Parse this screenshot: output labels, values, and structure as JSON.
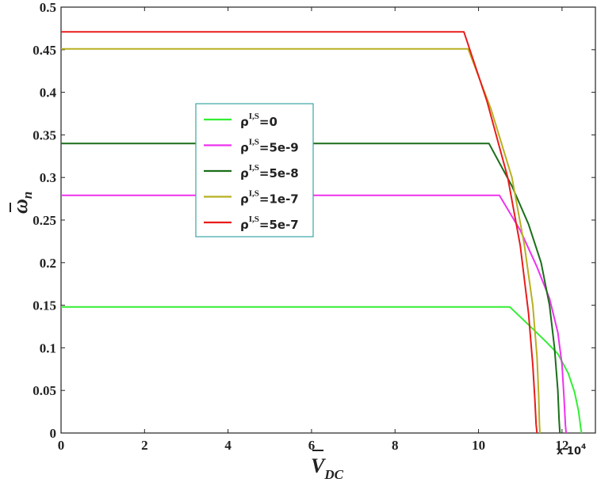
{
  "chart_data": {
    "type": "line",
    "xlabel_main": "V",
    "xlabel_sub": "DC",
    "ylabel_main": "ω",
    "ylabel_sub": "n",
    "x_multiplier": "x 10",
    "x_multiplier_exp": "4",
    "xlim": [
      0,
      12.8
    ],
    "ylim": [
      0,
      0.5
    ],
    "x_ticks": [
      0,
      2,
      4,
      6,
      8,
      10,
      12
    ],
    "x_tick_labels": [
      "0",
      "2",
      "4",
      "6",
      "8",
      "10",
      "12"
    ],
    "y_ticks": [
      0,
      0.05,
      0.1,
      0.15,
      0.2,
      0.25,
      0.3,
      0.35,
      0.4,
      0.45,
      0.5
    ],
    "y_tick_labels": [
      "0",
      "0.05",
      "0.1",
      "0.15",
      "0.2",
      "0.25",
      "0.3",
      "0.35",
      "0.4",
      "0.45",
      "0.5"
    ],
    "grid": false,
    "legend_position": "upper-left-center",
    "series": [
      {
        "name_prefix": "ρ",
        "name_sup": "I,S",
        "name_suffix": "=0",
        "color": "#33ee33",
        "x": [
          0,
          10.75,
          11.2,
          11.6,
          11.9,
          12.15,
          12.3,
          12.4,
          12.45,
          12.47
        ],
        "y": [
          0.148,
          0.148,
          0.127,
          0.108,
          0.093,
          0.07,
          0.048,
          0.025,
          0.005,
          0
        ]
      },
      {
        "name_prefix": "ρ",
        "name_sup": "I,S",
        "name_suffix": "=5e-9",
        "color": "#ee33ee",
        "x": [
          0,
          10.5,
          11.0,
          11.4,
          11.7,
          11.9,
          12.0,
          12.05,
          12.08,
          12.1
        ],
        "y": [
          0.279,
          0.279,
          0.238,
          0.195,
          0.158,
          0.118,
          0.08,
          0.04,
          0.01,
          0
        ]
      },
      {
        "name_prefix": "ρ",
        "name_sup": "I,S",
        "name_suffix": "=5e-8",
        "color": "#1a6e1a",
        "x": [
          0,
          10.25,
          10.8,
          11.2,
          11.5,
          11.7,
          11.82,
          11.9,
          11.93,
          11.95
        ],
        "y": [
          0.34,
          0.34,
          0.29,
          0.245,
          0.2,
          0.15,
          0.1,
          0.05,
          0.015,
          0
        ]
      },
      {
        "name_prefix": "ρ",
        "name_sup": "I,S",
        "name_suffix": "=1e-7",
        "color": "#b8b022",
        "x": [
          0,
          9.75,
          10.3,
          10.8,
          11.1,
          11.3,
          11.4,
          11.44,
          11.46,
          11.47
        ],
        "y": [
          0.451,
          0.451,
          0.38,
          0.3,
          0.22,
          0.15,
          0.09,
          0.045,
          0.01,
          0
        ]
      },
      {
        "name_prefix": "ρ",
        "name_sup": "I,S",
        "name_suffix": "=5e-7",
        "color": "#e81c1c",
        "x": [
          0,
          9.65,
          10.2,
          10.7,
          11.0,
          11.2,
          11.3,
          11.35,
          11.38,
          11.4
        ],
        "y": [
          0.471,
          0.471,
          0.39,
          0.3,
          0.22,
          0.14,
          0.08,
          0.04,
          0.01,
          0
        ]
      }
    ]
  }
}
